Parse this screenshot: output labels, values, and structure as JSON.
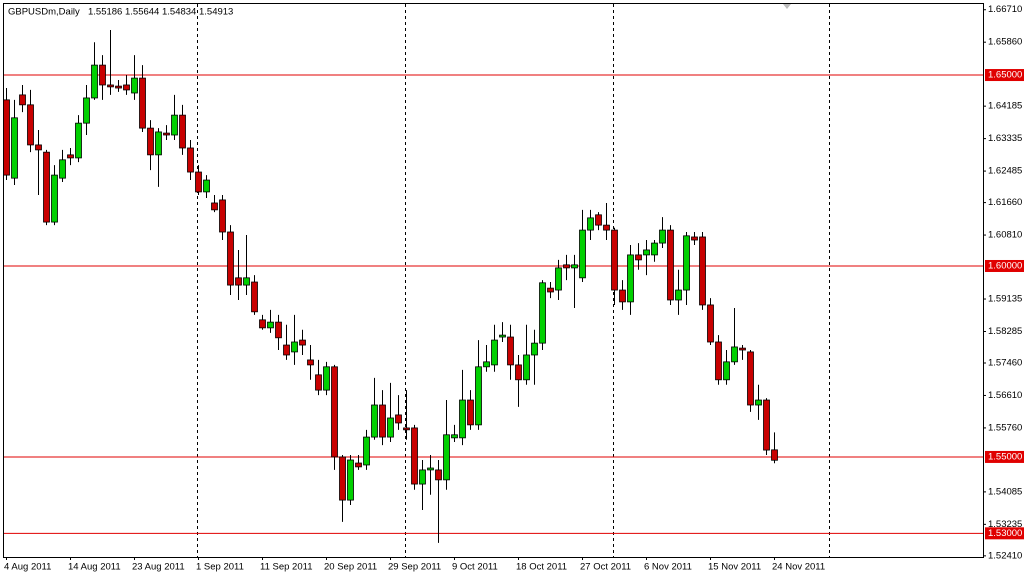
{
  "chart_data": {
    "type": "candlestick",
    "title": "GBPUSDm,Daily",
    "categories": [
      "4 Aug 2011",
      null,
      null,
      null,
      null,
      null,
      null,
      null,
      "14 Aug 2011",
      null,
      null,
      null,
      null,
      null,
      null,
      null,
      "23 Aug 2011",
      null,
      null,
      null,
      null,
      null,
      null,
      null,
      "1 Sep 2011",
      null,
      null,
      null,
      null,
      null,
      null,
      null,
      "11 Sep 2011",
      null,
      null,
      null,
      null,
      null,
      null,
      null,
      "20 Sep 2011",
      null,
      null,
      null,
      null,
      null,
      null,
      null,
      "29 Sep 2011",
      null,
      null,
      null,
      null,
      null,
      null,
      null,
      "9 Oct 2011",
      null,
      null,
      null,
      null,
      null,
      null,
      null,
      "18 Oct 2011",
      null,
      null,
      null,
      null,
      null,
      null,
      null,
      "27 Oct 2011",
      null,
      null,
      null,
      null,
      null,
      null,
      null,
      "6 Nov 2011",
      null,
      null,
      null,
      null,
      null,
      null,
      null,
      "15 Nov 2011",
      null,
      null,
      null,
      null,
      null,
      null,
      null,
      "24 Nov 2011"
    ],
    "open": [
      1.6435,
      1.623,
      1.6448,
      1.6422,
      1.6317,
      1.6298,
      1.6115,
      1.623,
      1.6291,
      1.6283,
      1.6374,
      1.644,
      1.6526,
      1.6474,
      1.6471,
      1.6474,
      1.6453,
      1.6492,
      1.6361,
      1.6291,
      1.6348,
      1.6343,
      1.6395,
      1.6309,
      1.6246,
      1.6194,
      1.6165,
      1.6173,
      1.6089,
      1.5969,
      1.595,
      1.5958,
      1.5859,
      1.5838,
      1.5853,
      1.5793,
      1.5775,
      1.5806,
      1.5754,
      1.5715,
      1.5675,
      1.5736,
      1.55,
      1.5387,
      1.5484,
      1.5479,
      1.5552,
      1.5636,
      1.5552,
      1.561,
      1.5576,
      1.5576,
      1.5429,
      1.5466,
      1.5466,
      1.544,
      1.555,
      1.555,
      1.5649,
      1.5584,
      1.5736,
      1.5741,
      1.5814,
      1.5814,
      1.5741,
      1.5702,
      1.5767,
      1.5798,
      1.5942,
      1.5937,
      1.6003,
      1.5995,
      1.5969,
      1.6094,
      1.6134,
      1.6107,
      1.6094,
      1.5937,
      1.5906,
      1.6029,
      1.6029,
      1.6029,
      1.606,
      1.6094,
      1.5911,
      1.5937,
      1.6076,
      1.6076,
      1.5898,
      1.5801,
      1.5702,
      1.5749,
      1.5785,
      1.5775,
      1.5636,
      1.5649,
      1.55186
    ],
    "high": [
      1.6466,
      1.6435,
      1.6474,
      1.6461,
      1.6356,
      1.6304,
      1.6264,
      1.6304,
      1.6309,
      1.6395,
      1.6474,
      1.6586,
      1.6552,
      1.6618,
      1.6487,
      1.65,
      1.6552,
      1.6526,
      1.6382,
      1.6361,
      1.6369,
      1.6448,
      1.6422,
      1.633,
      1.6264,
      1.6238,
      1.6186,
      1.6186,
      1.6107,
      1.6042,
      1.6081,
      1.5976,
      1.5872,
      1.5885,
      1.5872,
      1.5846,
      1.5872,
      1.5833,
      1.5793,
      1.5754,
      1.5749,
      1.5741,
      1.5505,
      1.5505,
      1.5505,
      1.5571,
      1.5707,
      1.5675,
      1.5694,
      1.5662,
      1.5675,
      1.5584,
      1.5492,
      1.5505,
      1.5492,
      1.5649,
      1.5584,
      1.5728,
      1.5675,
      1.5806,
      1.5793,
      1.5846,
      1.5853,
      1.5846,
      1.5767,
      1.5846,
      1.5833,
      1.5963,
      1.5958,
      1.6016,
      1.6029,
      1.6029,
      1.6147,
      1.6147,
      1.6141,
      1.6165,
      1.61,
      1.5963,
      1.6055,
      1.606,
      1.6068,
      1.6068,
      1.6128,
      1.6107,
      1.599,
      1.6089,
      1.6089,
      1.6089,
      1.5916,
      1.5819,
      1.578,
      1.589,
      1.5793,
      1.578,
      1.5689,
      1.5654,
      1.55644
    ],
    "low": [
      1.6225,
      1.6212,
      1.6403,
      1.6298,
      1.6186,
      1.6107,
      1.6107,
      1.622,
      1.6264,
      1.6272,
      1.6343,
      1.6435,
      1.6435,
      1.6448,
      1.6456,
      1.6448,
      1.6435,
      1.6351,
      1.6251,
      1.6207,
      1.633,
      1.633,
      1.6291,
      1.6225,
      1.6186,
      1.6178,
      1.6141,
      1.6068,
      1.5924,
      1.5911,
      1.5924,
      1.5872,
      1.5833,
      1.5825,
      1.578,
      1.5754,
      1.5741,
      1.5767,
      1.5702,
      1.5662,
      1.5662,
      1.5466,
      1.533,
      1.5374,
      1.5466,
      1.5466,
      1.5545,
      1.5531,
      1.5539,
      1.5571,
      1.5545,
      1.5414,
      1.5361,
      1.5401,
      1.5275,
      1.5414,
      1.5539,
      1.5531,
      1.5571,
      1.5571,
      1.5723,
      1.5723,
      1.5801,
      1.5702,
      1.5631,
      1.5689,
      1.5689,
      1.578,
      1.5916,
      1.5911,
      1.5963,
      1.589,
      1.5958,
      1.6068,
      1.6094,
      1.6068,
      1.5898,
      1.5885,
      1.5872,
      1.599,
      1.5976,
      1.6011,
      1.6047,
      1.5898,
      1.5872,
      1.5898,
      1.6055,
      1.5885,
      1.5793,
      1.5689,
      1.5689,
      1.5741,
      1.5754,
      1.5618,
      1.5597,
      1.5505,
      1.54834
    ],
    "close": [
      1.6238,
      1.6388,
      1.6422,
      1.6317,
      1.6304,
      1.6115,
      1.6238,
      1.6278,
      1.6283,
      1.6374,
      1.644,
      1.6526,
      1.6474,
      1.6469,
      1.6466,
      1.6461,
      1.6492,
      1.6361,
      1.6291,
      1.6351,
      1.6343,
      1.6395,
      1.6309,
      1.6246,
      1.6194,
      1.6225,
      1.6147,
      1.6089,
      1.595,
      1.595,
      1.5969,
      1.588,
      1.5838,
      1.5853,
      1.5812,
      1.5767,
      1.5801,
      1.5793,
      1.5741,
      1.5675,
      1.5736,
      1.55,
      1.5387,
      1.5492,
      1.5474,
      1.5552,
      1.5636,
      1.5552,
      1.5602,
      1.5589,
      1.5571,
      1.5429,
      1.5466,
      1.5471,
      1.544,
      1.5558,
      1.5558,
      1.5649,
      1.5584,
      1.5736,
      1.5749,
      1.5806,
      1.5819,
      1.5741,
      1.5702,
      1.5767,
      1.5798,
      1.5956,
      1.5932,
      1.5995,
      1.5995,
      1.6003,
      1.6094,
      1.6126,
      1.6107,
      1.6094,
      1.5937,
      1.5906,
      1.6029,
      1.6016,
      1.6042,
      1.606,
      1.6094,
      1.5911,
      1.5937,
      1.6079,
      1.6068,
      1.5898,
      1.5801,
      1.5702,
      1.5749,
      1.5788,
      1.578,
      1.5636,
      1.5649,
      1.5518,
      1.54913
    ],
    "up_color": "#00d000",
    "down_color": "#c80000",
    "ylim": [
      1.5238,
      1.6686
    ],
    "yticks": [
      {
        "value": 1.6671,
        "label": "1.66710"
      },
      {
        "value": 1.6586,
        "label": "1.65860"
      },
      {
        "value": 1.64185,
        "label": "1.64185"
      },
      {
        "value": 1.63335,
        "label": "1.63335"
      },
      {
        "value": 1.62485,
        "label": "1.62485"
      },
      {
        "value": 1.6166,
        "label": "1.61660"
      },
      {
        "value": 1.6081,
        "label": "1.60810"
      },
      {
        "value": 1.59135,
        "label": "1.59135"
      },
      {
        "value": 1.58285,
        "label": "1.58285"
      },
      {
        "value": 1.5746,
        "label": "1.57460"
      },
      {
        "value": 1.5661,
        "label": "1.56610"
      },
      {
        "value": 1.5576,
        "label": "1.55760"
      },
      {
        "value": 1.54085,
        "label": "1.54085"
      },
      {
        "value": 1.53235,
        "label": "1.53235"
      },
      {
        "value": 1.5241,
        "label": "1.52410"
      }
    ],
    "hlines": [
      {
        "value": 1.65,
        "label": "1.65000"
      },
      {
        "value": 1.6,
        "label": "1.60000"
      },
      {
        "value": 1.55,
        "label": "1.55000"
      },
      {
        "value": 1.53,
        "label": "1.53000"
      }
    ],
    "hline_color": "#e00000"
  }
}
